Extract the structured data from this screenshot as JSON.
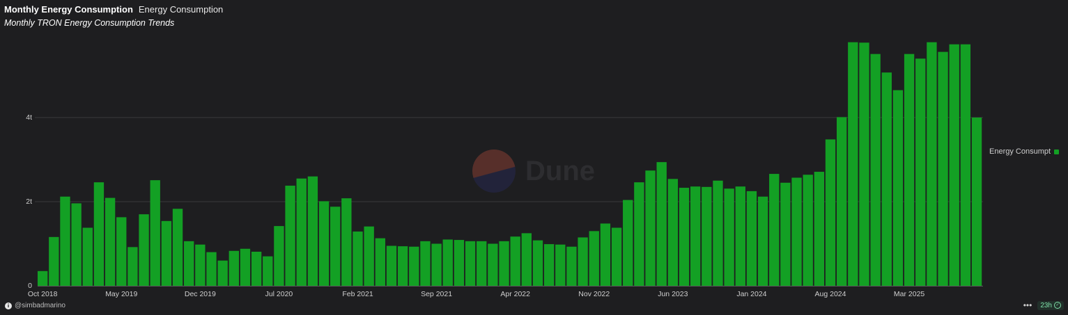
{
  "header": {
    "title": "Monthly Energy Consumption",
    "tab": "Energy Consumption",
    "subtitle": "Monthly TRON Energy Consumption Trends"
  },
  "watermark": {
    "text": "Dune"
  },
  "footer": {
    "author": "@simbadmarino",
    "refresh": "23h",
    "more_icon": "more-dots-icon",
    "status_icon": "check-circle-icon"
  },
  "colors": {
    "bar": "#13a024",
    "background": "#1e1e20",
    "grid": "#3a3a3c"
  },
  "chart_data": {
    "type": "bar",
    "title": "Monthly Energy Consumption",
    "subtitle": "Monthly TRON Energy Consumption Trends",
    "x_tick_labels": [
      "Oct 2018",
      "May 2019",
      "Dec 2019",
      "Jul 2020",
      "Feb 2021",
      "Sep 2021",
      "Apr 2022",
      "Nov 2022",
      "Jun 2023",
      "Jan 2024",
      "Aug 2024",
      "Mar 2025"
    ],
    "y_tick_labels": [
      "0",
      "2t",
      "4t"
    ],
    "y_unit": "trillion",
    "ylim": [
      0,
      6
    ],
    "grid": true,
    "legend": "right",
    "series": [
      {
        "name": "Energy Consumpt",
        "color": "#13a024",
        "start_month": "2018-10",
        "values": [
          0.35,
          1.16,
          2.12,
          1.96,
          1.38,
          2.46,
          2.09,
          1.63,
          0.92,
          1.7,
          2.51,
          1.54,
          1.83,
          1.06,
          0.98,
          0.8,
          0.6,
          0.83,
          0.88,
          0.81,
          0.7,
          1.42,
          2.38,
          2.55,
          2.6,
          2.01,
          1.88,
          2.08,
          1.29,
          1.41,
          1.13,
          0.95,
          0.94,
          0.93,
          1.06,
          1.0,
          1.1,
          1.09,
          1.06,
          1.06,
          1.0,
          1.06,
          1.17,
          1.25,
          1.08,
          0.99,
          0.98,
          0.93,
          1.15,
          1.3,
          1.48,
          1.38,
          2.04,
          2.46,
          2.74,
          2.94,
          2.54,
          2.33,
          2.36,
          2.35,
          2.5,
          2.31,
          2.36,
          2.25,
          2.12,
          2.66,
          2.45,
          2.57,
          2.64,
          2.71,
          3.48,
          4.01,
          5.79,
          5.78,
          5.51,
          5.07,
          4.65,
          5.51,
          5.4,
          5.79,
          5.56,
          5.74,
          5.74,
          4.0
        ]
      }
    ]
  }
}
